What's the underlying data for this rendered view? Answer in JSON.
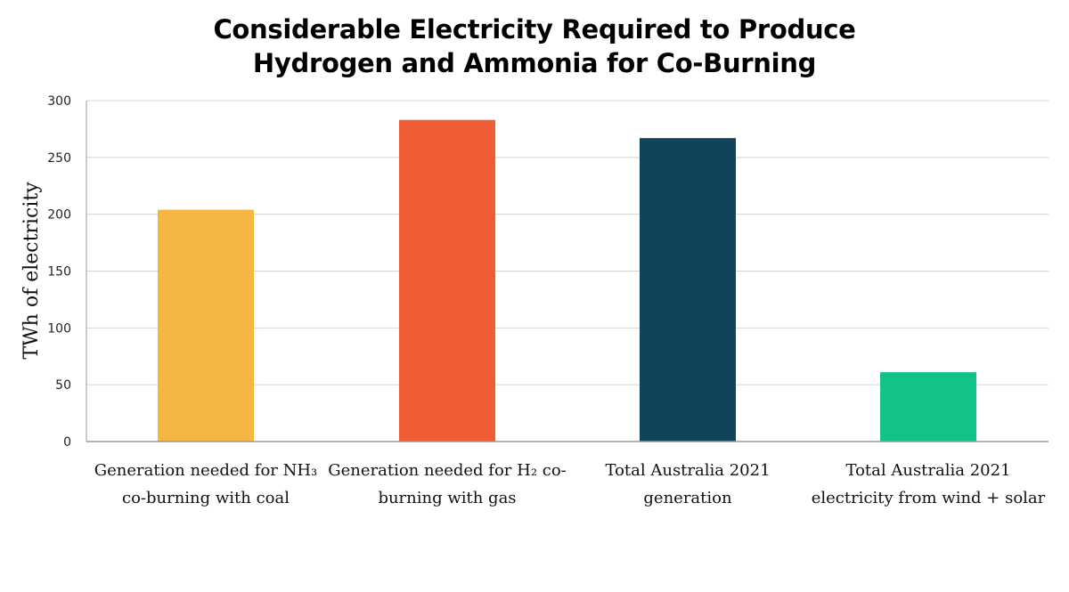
{
  "chart_data": {
    "type": "bar",
    "title": [
      "Considerable Electricity Required to Produce",
      "Hydrogen and Ammonia for Co-Burning"
    ],
    "xlabel": "",
    "ylabel": "TWh of electricity",
    "ylim": [
      0,
      300
    ],
    "yticks": [
      0,
      50,
      100,
      150,
      200,
      250,
      300
    ],
    "grid": true,
    "legend": "none",
    "categories": [
      [
        "Generation needed for NH₃",
        "co-burning with coal"
      ],
      [
        "Generation needed for H₂ co-",
        "burning with gas"
      ],
      [
        "Total Australia 2021",
        "generation"
      ],
      [
        "Total Australia 2021",
        "electricity from wind + solar"
      ]
    ],
    "values": [
      204,
      283,
      267,
      61
    ],
    "colors": [
      "#F5B642",
      "#EF5D36",
      "#10445A",
      "#12C385"
    ]
  }
}
